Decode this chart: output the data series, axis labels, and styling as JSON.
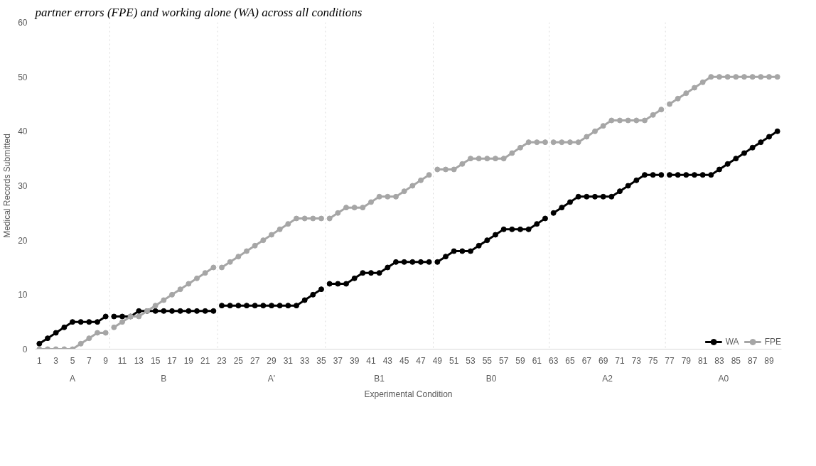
{
  "chart_data": {
    "type": "line",
    "title": "partner errors (FPE) and working alone (WA) across all conditions",
    "xlabel": "Experimental Condition",
    "ylabel": "Medical Records Submitted",
    "x": [
      1,
      2,
      3,
      4,
      5,
      6,
      7,
      8,
      9,
      10,
      11,
      12,
      13,
      14,
      15,
      16,
      17,
      18,
      19,
      20,
      21,
      22,
      23,
      24,
      25,
      26,
      27,
      28,
      29,
      30,
      31,
      32,
      33,
      34,
      35,
      36,
      37,
      38,
      39,
      40,
      41,
      42,
      43,
      44,
      45,
      46,
      47,
      48,
      49,
      50,
      51,
      52,
      53,
      54,
      55,
      56,
      57,
      58,
      59,
      60,
      61,
      62,
      63,
      64,
      65,
      66,
      67,
      68,
      69,
      70,
      71,
      72,
      73,
      74,
      75,
      76,
      77,
      78,
      79,
      80,
      81,
      82,
      83,
      84,
      85,
      86,
      87,
      88,
      89,
      90
    ],
    "series": [
      {
        "name": "WA",
        "color": "#000000",
        "values": [
          1,
          2,
          3,
          4,
          5,
          5,
          5,
          5,
          6,
          6,
          6,
          6,
          7,
          7,
          7,
          7,
          7,
          7,
          7,
          7,
          7,
          7,
          8,
          8,
          8,
          8,
          8,
          8,
          8,
          8,
          8,
          8,
          9,
          10,
          11,
          12,
          12,
          12,
          13,
          14,
          14,
          14,
          15,
          16,
          16,
          16,
          16,
          16,
          16,
          17,
          18,
          18,
          18,
          19,
          20,
          21,
          22,
          22,
          22,
          22,
          23,
          24,
          25,
          26,
          27,
          28,
          28,
          28,
          28,
          28,
          29,
          30,
          31,
          32,
          32,
          32,
          32,
          32,
          32,
          32,
          32,
          32,
          33,
          34,
          35,
          36,
          37,
          38,
          39,
          40
        ]
      },
      {
        "name": "FPE",
        "color": "#a6a6a6",
        "values": [
          0,
          0,
          0,
          0,
          0,
          1,
          2,
          3,
          3,
          4,
          5,
          6,
          6,
          7,
          8,
          9,
          10,
          11,
          12,
          13,
          14,
          15,
          15,
          16,
          17,
          18,
          19,
          20,
          21,
          22,
          23,
          24,
          24,
          24,
          24,
          24,
          25,
          26,
          26,
          26,
          27,
          28,
          28,
          28,
          29,
          30,
          31,
          32,
          33,
          33,
          33,
          34,
          35,
          35,
          35,
          35,
          35,
          36,
          37,
          38,
          38,
          38,
          38,
          38,
          38,
          38,
          39,
          40,
          41,
          42,
          42,
          42,
          42,
          42,
          43,
          44,
          45,
          46,
          47,
          48,
          49,
          50,
          50,
          50,
          50,
          50,
          50,
          50,
          50,
          50
        ]
      }
    ],
    "xlim": [
      0.5,
      90.5
    ],
    "xticks": [
      1,
      3,
      5,
      7,
      9,
      11,
      13,
      15,
      17,
      19,
      21,
      23,
      25,
      27,
      29,
      31,
      33,
      35,
      37,
      39,
      41,
      43,
      45,
      47,
      49,
      51,
      53,
      55,
      57,
      59,
      61,
      63,
      65,
      67,
      69,
      71,
      73,
      75,
      77,
      79,
      81,
      83,
      85,
      87,
      89
    ],
    "ylim": [
      0,
      60
    ],
    "yticks": [
      0,
      10,
      20,
      30,
      40,
      50,
      60
    ],
    "ref_lines": [
      {
        "axis": "x",
        "value": 9.5,
        "color": "#d9d9d9",
        "line_style": "dotted"
      },
      {
        "axis": "x",
        "value": 22.5,
        "color": "#d9d9d9",
        "line_style": "dotted"
      },
      {
        "axis": "x",
        "value": 35.5,
        "color": "#d9d9d9",
        "line_style": "dotted"
      },
      {
        "axis": "x",
        "value": 48.5,
        "color": "#d9d9d9",
        "line_style": "dotted"
      },
      {
        "axis": "x",
        "value": 62.5,
        "color": "#d9d9d9",
        "line_style": "dotted"
      },
      {
        "axis": "x",
        "value": 76.5,
        "color": "#d9d9d9",
        "line_style": "dotted"
      }
    ],
    "annotations": [
      "A",
      "B",
      "A'",
      "B1",
      "B0",
      "A2",
      "A0"
    ],
    "grid": false,
    "legend": "bottom right",
    "marker": "circle",
    "line_style": "solid"
  }
}
